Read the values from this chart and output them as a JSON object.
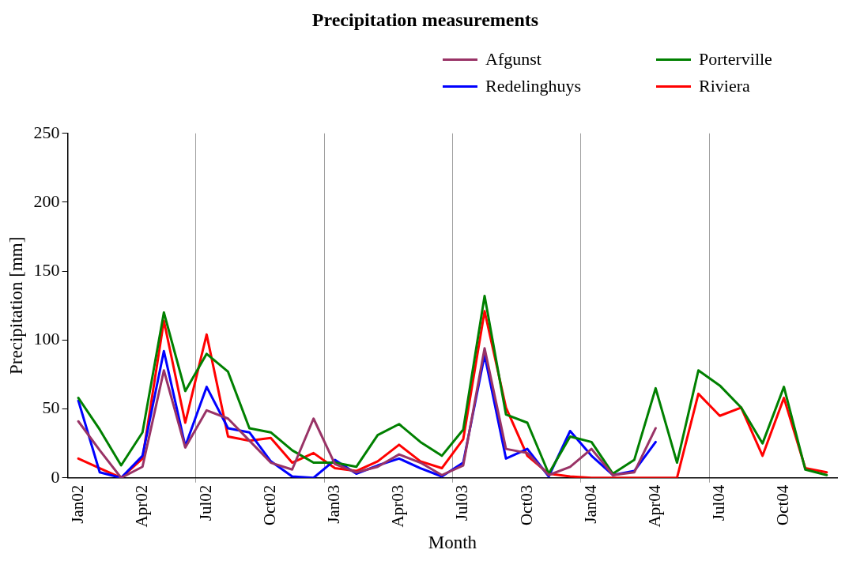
{
  "chart_data": {
    "type": "line",
    "title": "Precipitation measurements",
    "xlabel": "Month",
    "ylabel": "Precipitation [mm]",
    "categories": [
      "Jan02",
      null,
      null,
      "Apr02",
      null,
      null,
      "Jul02",
      null,
      null,
      "Oct02",
      null,
      null,
      "Jan03",
      null,
      null,
      "Apr03",
      null,
      null,
      "Jul03",
      null,
      null,
      "Oct03",
      null,
      null,
      "Jan04",
      null,
      null,
      "Apr04",
      null,
      null,
      "Jul04",
      null,
      null,
      "Oct04",
      null,
      null
    ],
    "series": [
      {
        "name": "Afgunst",
        "color": "#993366",
        "values": [
          41,
          20,
          0,
          8,
          78,
          22,
          49,
          43,
          27,
          11,
          6,
          43,
          10,
          4,
          8,
          17,
          11,
          2,
          9,
          94,
          21,
          18,
          2,
          8,
          21,
          2,
          4,
          36,
          null,
          null,
          null,
          null,
          null,
          null,
          null,
          null
        ]
      },
      {
        "name": "Porterville",
        "color": "#008000",
        "values": [
          58,
          35,
          9,
          33,
          120,
          63,
          90,
          77,
          36,
          33,
          20,
          11,
          11,
          8,
          31,
          39,
          26,
          16,
          35,
          132,
          46,
          40,
          3,
          30,
          26,
          3,
          13,
          65,
          11,
          78,
          67,
          51,
          25,
          66,
          6,
          2
        ]
      },
      {
        "name": "Redelinghuys",
        "color": "#0000ff",
        "values": [
          56,
          4,
          0,
          16,
          92,
          23,
          66,
          36,
          33,
          12,
          1,
          0,
          13,
          3,
          9,
          14,
          7,
          1,
          11,
          89,
          14,
          21,
          1,
          34,
          16,
          2,
          5,
          26,
          null,
          null,
          null,
          null,
          null,
          null,
          null,
          null
        ]
      },
      {
        "name": "Riviera",
        "color": "#ff0000",
        "values": [
          14,
          7,
          0,
          14,
          114,
          40,
          104,
          30,
          27,
          29,
          11,
          18,
          7,
          5,
          12,
          24,
          12,
          7,
          28,
          121,
          51,
          16,
          3,
          1,
          0,
          0,
          0,
          0,
          0,
          61,
          45,
          51,
          16,
          58,
          7,
          4
        ]
      }
    ],
    "ylim": [
      0,
      250
    ],
    "yticks": [
      0,
      50,
      100,
      150,
      200,
      250
    ],
    "grid": "x",
    "legend": "top right",
    "marker": "none",
    "line_style": "solid"
  }
}
